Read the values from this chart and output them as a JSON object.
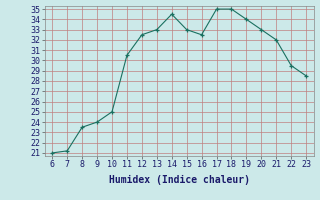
{
  "x": [
    6,
    7,
    8,
    9,
    10,
    11,
    12,
    13,
    14,
    15,
    16,
    17,
    18,
    19,
    20,
    21,
    22,
    23
  ],
  "y": [
    21.0,
    21.2,
    23.5,
    24.0,
    25.0,
    30.5,
    32.5,
    33.0,
    34.5,
    33.0,
    32.5,
    35.0,
    35.0,
    34.0,
    33.0,
    32.0,
    29.5,
    28.5
  ],
  "line_color": "#1a7060",
  "bg_color": "#cce9e9",
  "grid_color_major": "#c08080",
  "grid_color_minor": "#d4b0b0",
  "xlabel": "Humidex (Indice chaleur)",
  "xlim": [
    5.5,
    23.5
  ],
  "ylim": [
    21,
    35
  ],
  "yticks": [
    21,
    22,
    23,
    24,
    25,
    26,
    27,
    28,
    29,
    30,
    31,
    32,
    33,
    34,
    35
  ],
  "xticks": [
    6,
    7,
    8,
    9,
    10,
    11,
    12,
    13,
    14,
    15,
    16,
    17,
    18,
    19,
    20,
    21,
    22,
    23
  ],
  "tick_fontsize": 6,
  "xlabel_fontsize": 7
}
